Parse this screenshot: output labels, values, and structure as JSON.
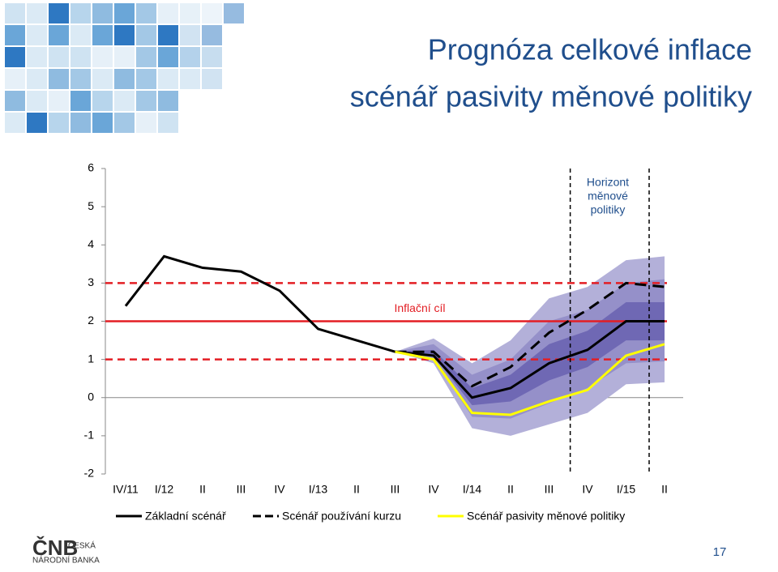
{
  "chart_data": {
    "type": "line",
    "title": "Prognóza celkové inflace",
    "subtitle": "scénář pasivity měnové politiky",
    "categories": [
      "IV/11",
      "I/12",
      "II",
      "III",
      "IV",
      "I/13",
      "II",
      "III",
      "IV",
      "I/14",
      "II",
      "III",
      "IV",
      "I/15",
      "II"
    ],
    "ylim": [
      -2,
      6
    ],
    "yticks": [
      -2,
      -1,
      0,
      1,
      2,
      3,
      4,
      5,
      6
    ],
    "series": [
      {
        "name": "Základní scénář",
        "color": "#000000",
        "dash": false,
        "values": [
          2.4,
          3.7,
          3.4,
          3.3,
          2.8,
          1.8,
          1.5,
          1.2,
          1.1,
          0.0,
          0.25,
          0.9,
          1.25,
          2.0,
          2.0
        ]
      },
      {
        "name": "Scénář používání kurzu",
        "color": "#000000",
        "dash": true,
        "values": [
          null,
          null,
          null,
          null,
          null,
          null,
          null,
          1.2,
          1.2,
          0.3,
          0.8,
          1.7,
          2.3,
          3.0,
          2.9
        ]
      },
      {
        "name": "Scénář pasivity měnové politiky",
        "color": "#ffff00",
        "dash": false,
        "values": [
          null,
          null,
          null,
          null,
          null,
          null,
          null,
          1.2,
          1.0,
          -0.4,
          -0.45,
          -0.1,
          0.2,
          1.1,
          1.4
        ]
      }
    ],
    "bands": [
      {
        "color": "#b3b0d9",
        "lower": [
          null,
          null,
          null,
          null,
          null,
          null,
          null,
          1.2,
          0.9,
          -0.8,
          -1.0,
          -0.7,
          -0.4,
          0.35,
          0.4
        ],
        "upper": [
          null,
          null,
          null,
          null,
          null,
          null,
          null,
          1.2,
          1.55,
          0.9,
          1.5,
          2.6,
          2.9,
          3.6,
          3.7
        ]
      },
      {
        "color": "#9590c9",
        "lower": [
          null,
          null,
          null,
          null,
          null,
          null,
          null,
          1.2,
          1.0,
          -0.5,
          -0.55,
          -0.15,
          0.25,
          0.9,
          0.95
        ],
        "upper": [
          null,
          null,
          null,
          null,
          null,
          null,
          null,
          1.2,
          1.4,
          0.6,
          1.0,
          2.0,
          2.3,
          3.0,
          3.1
        ]
      },
      {
        "color": "#6f68b4",
        "lower": [
          null,
          null,
          null,
          null,
          null,
          null,
          null,
          1.2,
          1.1,
          -0.2,
          -0.1,
          0.45,
          0.8,
          1.5,
          1.5
        ],
        "upper": [
          null,
          null,
          null,
          null,
          null,
          null,
          null,
          1.2,
          1.25,
          0.25,
          0.6,
          1.4,
          1.75,
          2.5,
          2.5
        ]
      }
    ],
    "reference_lines": [
      {
        "value": 3,
        "color": "#e31e24",
        "dash": true
      },
      {
        "value": 2,
        "color": "#e31e24",
        "dash": false
      },
      {
        "value": 1,
        "color": "#e31e24",
        "dash": true
      }
    ],
    "target_label": "Inflační cíl",
    "horizon_label": [
      "Horizont",
      "měnové",
      "politiky"
    ],
    "horizon_x": [
      11.55,
      13.6
    ]
  },
  "footer": {
    "logo": "ČNB",
    "bank_line1": "ČESKÁ",
    "bank_line2": "NÁRODNÍ BANKA",
    "page_number": "17"
  }
}
